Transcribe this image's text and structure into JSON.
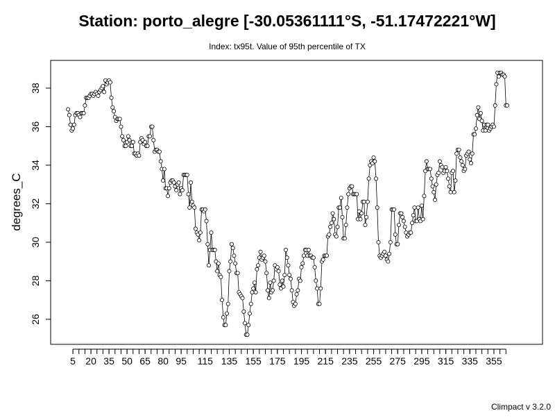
{
  "chart_data": {
    "type": "line_points",
    "title": "Station: porto_alegre [-30.05361111°S, -51.17472221°W]",
    "subtitle": "Index: tx95t. Value of 95th percentile of TX",
    "y_label": "degrees_C",
    "footer": "Climpact v 3.2.0",
    "color": "#000000",
    "xlim": [
      -13.5,
      395.4
    ],
    "ylim": [
      24.7,
      39.44
    ],
    "xticks": [
      5,
      20,
      35,
      50,
      65,
      80,
      95,
      115,
      135,
      155,
      175,
      195,
      215,
      235,
      255,
      275,
      295,
      315,
      335,
      355
    ],
    "xminor_ticks": [
      5,
      10,
      15,
      20,
      25,
      30,
      35,
      40,
      45,
      50,
      55,
      60,
      65,
      70,
      75,
      80,
      85,
      90,
      95,
      100,
      105,
      110,
      115,
      120,
      125,
      130,
      135,
      140,
      145,
      150,
      155,
      160,
      165,
      170,
      175,
      180,
      185,
      190,
      195,
      200,
      205,
      210,
      215,
      220,
      225,
      230,
      235,
      240,
      245,
      250,
      255,
      260,
      265,
      270,
      275,
      280,
      285,
      290,
      295,
      300,
      305,
      310,
      315,
      320,
      325,
      330,
      335,
      340,
      345,
      350,
      355,
      360,
      365
    ],
    "yticks": [
      26,
      28,
      30,
      32,
      34,
      36,
      38
    ],
    "x": [
      1,
      2,
      3,
      4,
      5,
      6,
      7,
      8,
      9,
      10,
      11,
      12,
      13,
      14,
      15,
      16,
      17,
      18,
      19,
      20,
      21,
      22,
      23,
      24,
      25,
      26,
      27,
      28,
      29,
      30,
      31,
      32,
      33,
      34,
      35,
      36,
      37,
      38,
      39,
      40,
      41,
      42,
      43,
      44,
      45,
      46,
      47,
      48,
      49,
      50,
      51,
      52,
      53,
      54,
      55,
      56,
      57,
      58,
      59,
      60,
      61,
      62,
      63,
      64,
      65,
      66,
      67,
      68,
      69,
      70,
      71,
      72,
      73,
      74,
      75,
      76,
      77,
      78,
      79,
      80,
      81,
      82,
      83,
      84,
      85,
      86,
      87,
      88,
      89,
      90,
      91,
      92,
      93,
      94,
      95,
      96,
      97,
      98,
      99,
      100,
      101,
      102,
      103,
      104,
      105,
      106,
      107,
      108,
      109,
      110,
      111,
      112,
      113,
      114,
      115,
      116,
      117,
      118,
      119,
      120,
      121,
      122,
      123,
      124,
      125,
      126,
      127,
      128,
      129,
      130,
      131,
      132,
      133,
      134,
      135,
      136,
      137,
      138,
      139,
      140,
      141,
      142,
      143,
      144,
      145,
      146,
      147,
      148,
      149,
      150,
      151,
      152,
      153,
      154,
      155,
      156,
      157,
      158,
      159,
      160,
      161,
      162,
      163,
      164,
      165,
      166,
      167,
      168,
      169,
      170,
      171,
      172,
      173,
      174,
      175,
      176,
      177,
      178,
      179,
      180,
      181,
      182,
      183,
      184,
      185,
      186,
      187,
      188,
      189,
      190,
      191,
      192,
      193,
      194,
      195,
      196,
      197,
      198,
      199,
      200,
      201,
      202,
      203,
      204,
      205,
      206,
      207,
      208,
      209,
      210,
      211,
      212,
      213,
      214,
      215,
      216,
      217,
      218,
      219,
      220,
      221,
      222,
      223,
      224,
      225,
      226,
      227,
      228,
      229,
      230,
      231,
      232,
      233,
      234,
      235,
      236,
      237,
      238,
      239,
      240,
      241,
      242,
      243,
      244,
      245,
      246,
      247,
      248,
      249,
      250,
      251,
      252,
      253,
      254,
      255,
      256,
      257,
      258,
      259,
      260,
      261,
      262,
      263,
      264,
      265,
      266,
      267,
      268,
      269,
      270,
      271,
      272,
      273,
      274,
      275,
      276,
      277,
      278,
      279,
      280,
      281,
      282,
      283,
      284,
      285,
      286,
      287,
      288,
      289,
      290,
      291,
      292,
      293,
      294,
      295,
      296,
      297,
      298,
      299,
      300,
      301,
      302,
      303,
      304,
      305,
      306,
      307,
      308,
      309,
      310,
      311,
      312,
      313,
      314,
      315,
      316,
      317,
      318,
      319,
      320,
      321,
      322,
      323,
      324,
      325,
      326,
      327,
      328,
      329,
      330,
      331,
      332,
      333,
      334,
      335,
      336,
      337,
      338,
      339,
      340,
      341,
      342,
      343,
      344,
      345,
      346,
      347,
      348,
      349,
      350,
      351,
      352,
      353,
      354,
      355,
      356,
      357,
      358,
      359,
      360,
      361,
      362,
      363,
      364,
      365,
      366
    ],
    "values": [
      36.9,
      36.6,
      36.1,
      35.8,
      35.9,
      36.1,
      36.6,
      36.7,
      36.7,
      36.6,
      36.5,
      36.7,
      36.7,
      36.7,
      37.1,
      37.5,
      37.5,
      37.5,
      37.6,
      37.7,
      37.7,
      37.6,
      37.7,
      37.8,
      37.7,
      37.6,
      37.8,
      37.9,
      38.0,
      38.1,
      37.8,
      38.4,
      38.2,
      38.3,
      38.4,
      38.3,
      37.5,
      37.0,
      36.8,
      36.5,
      36.3,
      36.4,
      36.4,
      36.4,
      36.0,
      35.5,
      35.3,
      35.0,
      35.0,
      35.2,
      35.5,
      35.3,
      35.0,
      35.0,
      35.2,
      34.6,
      34.6,
      34.5,
      34.6,
      34.5,
      35.2,
      35.4,
      35.3,
      35.1,
      35.2,
      35.0,
      35.0,
      35.5,
      35.5,
      36.0,
      36.0,
      35.3,
      34.7,
      34.8,
      34.8,
      34.7,
      34.7,
      34.2,
      33.8,
      33.2,
      33.8,
      32.8,
      32.8,
      32.4,
      32.8,
      33.1,
      33.2,
      33.2,
      33.1,
      32.9,
      32.7,
      33.0,
      33.1,
      32.5,
      32.8,
      32.7,
      33.5,
      33.5,
      33.5,
      33.5,
      32.5,
      31.8,
      33.1,
      32.1,
      31.9,
      31.8,
      30.7,
      30.5,
      30.4,
      30.1,
      30.5,
      31.7,
      31.7,
      31.6,
      31.7,
      31.1,
      29.9,
      28.8,
      29.6,
      30.5,
      29.6,
      29.6,
      29.6,
      29.0,
      28.5,
      28.9,
      28.3,
      28.2,
      27.0,
      26.1,
      25.7,
      25.7,
      26.3,
      26.8,
      28.5,
      29.0,
      29.9,
      29.7,
      29.3,
      28.9,
      28.4,
      28.4,
      27.4,
      27.3,
      27.2,
      27.1,
      26.4,
      25.8,
      25.2,
      25.2,
      25.7,
      26.3,
      26.8,
      27.4,
      27.6,
      27.9,
      27.4,
      28.6,
      28.8,
      29.2,
      29.5,
      29.1,
      29.2,
      29.3,
      29.0,
      28.4,
      27.5,
      27.1,
      27.9,
      27.4,
      27.5,
      28.0,
      28.8,
      28.6,
      28.7,
      28.5,
      27.8,
      27.6,
      28.0,
      27.7,
      28.3,
      29.6,
      29.2,
      28.8,
      28.3,
      28.1,
      27.5,
      26.9,
      26.7,
      26.8,
      27.3,
      27.5,
      28.1,
      28.0,
      28.7,
      28.9,
      29.3,
      29.6,
      29.6,
      29.3,
      29.6,
      29.3,
      29.3,
      29.2,
      29.2,
      28.7,
      28.0,
      27.6,
      26.8,
      26.8,
      27.6,
      29.0,
      29.1,
      29.3,
      29.3,
      29.3,
      30.3,
      30.4,
      30.8,
      31.0,
      31.5,
      31.2,
      30.4,
      30.3,
      30.8,
      31.8,
      31.8,
      32.3,
      31.3,
      30.2,
      30.2,
      30.9,
      31.8,
      32.5,
      32.8,
      32.9,
      32.9,
      32.5,
      32.5,
      32.5,
      32.5,
      31.2,
      31.6,
      31.2,
      31.5,
      32.1,
      32.1,
      30.9,
      31.3,
      32.1,
      33.3,
      34.0,
      34.2,
      34.1,
      34.4,
      34.2,
      33.3,
      31.8,
      30.0,
      29.3,
      29.2,
      29.3,
      29.4,
      29.5,
      29.3,
      29.1,
      29.0,
      29.4,
      30.0,
      31.7,
      31.7,
      31.7,
      30.4,
      29.9,
      29.9,
      30.9,
      31.5,
      31.5,
      31.3,
      31.1,
      30.8,
      30.5,
      30.3,
      30.4,
      30.5,
      30.5,
      31.0,
      31.4,
      31.8,
      31.1,
      31.1,
      31.8,
      31.2,
      31.1,
      31.9,
      31.2,
      32.4,
      33.7,
      34.2,
      33.8,
      33.8,
      33.8,
      33.3,
      32.9,
      32.6,
      32.2,
      33.0,
      33.5,
      33.6,
      34.2,
      34.0,
      33.9,
      33.6,
      33.7,
      33.9,
      33.7,
      33.3,
      32.9,
      32.6,
      33.6,
      33.7,
      32.6,
      33.2,
      34.6,
      34.8,
      34.8,
      34.4,
      34.2,
      34.0,
      33.7,
      33.8,
      34.5,
      34.6,
      34.7,
      34.3,
      34.1,
      34.6,
      35.6,
      35.6,
      35.9,
      36.6,
      37.0,
      36.4,
      36.7,
      36.3,
      35.8,
      36.1,
      35.8,
      36.1,
      36.1,
      35.8,
      35.9,
      36.0,
      36.1,
      36.0,
      37.1,
      38.2,
      38.8,
      38.6,
      38.8,
      38.8,
      38.7,
      38.7,
      38.6,
      37.1,
      37.1
    ]
  }
}
